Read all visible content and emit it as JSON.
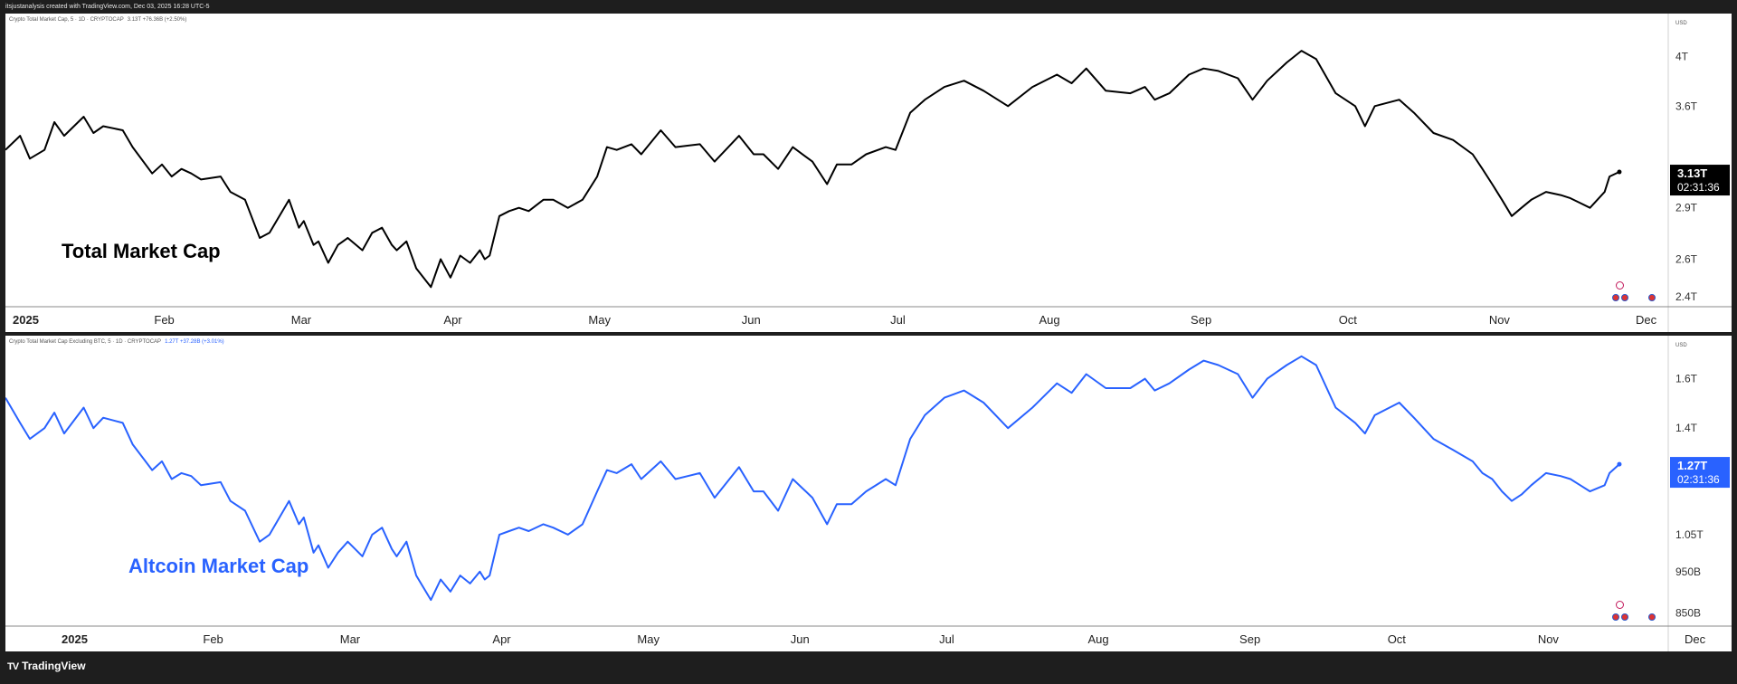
{
  "header": {
    "text": "itsjustanalysis created with TradingView.com, Dec 03, 2025 16:28 UTC-5"
  },
  "footer": {
    "logo_text": "TradingView",
    "logo_mark": "TV"
  },
  "colors": {
    "line1": "#000000",
    "line2": "#2962ff",
    "badge2": "#2962ff"
  },
  "chart_data": [
    {
      "type": "line",
      "legend": "Crypto Total Market Cap, 5 · 1D · CRYPTOCAP",
      "legend_value": "3.13T  +76.36B (+2.50%)",
      "annotation": "Total Market Cap",
      "currency": "USD",
      "x_labels": [
        "2025",
        "Feb",
        "Mar",
        "Apr",
        "May",
        "Jun",
        "Jul",
        "Aug",
        "Sep",
        "Oct",
        "Nov",
        "Dec"
      ],
      "x_label_pos": [
        0,
        31,
        59,
        90,
        120,
        151,
        181,
        212,
        243,
        273,
        304,
        334
      ],
      "y_ticks": [
        {
          "v": 2.4,
          "label": "2.4T"
        },
        {
          "v": 2.6,
          "label": "2.6T"
        },
        {
          "v": 2.9,
          "label": "2.9T"
        },
        {
          "v": 3.6,
          "label": "3.6T"
        },
        {
          "v": 4.0,
          "label": "4T"
        }
      ],
      "y_range": [
        2.35,
        4.35
      ],
      "log_scale": true,
      "last_value": 3.13,
      "badge_value": "3.13T",
      "badge_time": "02:31:36",
      "x": [
        0,
        3,
        5,
        8,
        10,
        12,
        16,
        18,
        20,
        24,
        26,
        30,
        32,
        34,
        36,
        38,
        40,
        44,
        46,
        49,
        52,
        54,
        58,
        60,
        61,
        63,
        64,
        66,
        68,
        70,
        73,
        75,
        77,
        79,
        80,
        82,
        84,
        87,
        89,
        91,
        93,
        95,
        97,
        98,
        99,
        101,
        103,
        105,
        107,
        110,
        112,
        115,
        118,
        121,
        123,
        125,
        128,
        130,
        134,
        137,
        142,
        145,
        150,
        153,
        155,
        158,
        161,
        165,
        168,
        170,
        173,
        176,
        180,
        182,
        185,
        188,
        192,
        196,
        200,
        205,
        210,
        215,
        218,
        221,
        225,
        230,
        233,
        235,
        238,
        242,
        245,
        248,
        252,
        255,
        258,
        262,
        265,
        268,
        272,
        276,
        278,
        280,
        285,
        288,
        292,
        296,
        300,
        302,
        304,
        306,
        308,
        310,
        312,
        315,
        318,
        320,
        322,
        324,
        327,
        328,
        330
      ],
      "y": [
        3.28,
        3.38,
        3.22,
        3.28,
        3.48,
        3.38,
        3.52,
        3.4,
        3.45,
        3.42,
        3.3,
        3.12,
        3.18,
        3.1,
        3.15,
        3.12,
        3.08,
        3.1,
        3.0,
        2.95,
        2.72,
        2.75,
        2.95,
        2.78,
        2.82,
        2.68,
        2.7,
        2.58,
        2.68,
        2.72,
        2.65,
        2.75,
        2.78,
        2.68,
        2.65,
        2.7,
        2.55,
        2.45,
        2.6,
        2.5,
        2.62,
        2.58,
        2.65,
        2.6,
        2.62,
        2.85,
        2.88,
        2.9,
        2.88,
        2.95,
        2.95,
        2.9,
        2.95,
        3.1,
        3.3,
        3.28,
        3.32,
        3.25,
        3.42,
        3.3,
        3.32,
        3.2,
        3.38,
        3.25,
        3.25,
        3.15,
        3.3,
        3.2,
        3.05,
        3.18,
        3.18,
        3.25,
        3.3,
        3.28,
        3.55,
        3.65,
        3.75,
        3.8,
        3.72,
        3.6,
        3.75,
        3.85,
        3.78,
        3.9,
        3.72,
        3.7,
        3.75,
        3.65,
        3.7,
        3.85,
        3.9,
        3.88,
        3.82,
        3.65,
        3.8,
        3.95,
        4.05,
        3.98,
        3.7,
        3.6,
        3.45,
        3.6,
        3.65,
        3.55,
        3.4,
        3.35,
        3.25,
        3.15,
        3.05,
        2.95,
        2.85,
        2.9,
        2.95,
        3.0,
        2.98,
        2.96,
        2.93,
        2.9,
        3.0,
        3.1,
        3.13
      ]
    },
    {
      "type": "line",
      "legend": "Crypto Total Market Cap Excluding BTC, 5 · 1D · CRYPTOCAP",
      "legend_value": "1.27T  +37.28B (+3.01%)",
      "annotation": "Altcoin Market Cap",
      "currency": "USD",
      "x_labels": [
        "2025",
        "Feb",
        "Mar",
        "Apr",
        "May",
        "Jun",
        "Jul",
        "Aug",
        "Sep",
        "Oct",
        "Nov",
        "Dec"
      ],
      "x_label_pos": [
        0,
        31,
        59,
        90,
        120,
        151,
        181,
        212,
        243,
        273,
        304,
        334
      ],
      "y_ticks": [
        {
          "v": 0.85,
          "label": "850B"
        },
        {
          "v": 0.95,
          "label": "950B"
        },
        {
          "v": 1.05,
          "label": "1.05T"
        },
        {
          "v": 1.4,
          "label": "1.4T"
        },
        {
          "v": 1.6,
          "label": "1.6T"
        }
      ],
      "y_range": [
        0.82,
        1.78
      ],
      "log_scale": true,
      "last_value": 1.27,
      "badge_value": "1.27T",
      "badge_time": "02:31:36",
      "x": [
        0,
        3,
        5,
        8,
        10,
        12,
        16,
        18,
        20,
        24,
        26,
        30,
        32,
        34,
        36,
        38,
        40,
        44,
        46,
        49,
        52,
        54,
        58,
        60,
        61,
        63,
        64,
        66,
        68,
        70,
        73,
        75,
        77,
        79,
        80,
        82,
        84,
        87,
        89,
        91,
        93,
        95,
        97,
        98,
        99,
        101,
        103,
        105,
        107,
        110,
        112,
        115,
        118,
        121,
        123,
        125,
        128,
        130,
        134,
        137,
        142,
        145,
        150,
        153,
        155,
        158,
        161,
        165,
        168,
        170,
        173,
        176,
        180,
        182,
        185,
        188,
        192,
        196,
        200,
        205,
        210,
        215,
        218,
        221,
        225,
        230,
        233,
        235,
        238,
        242,
        245,
        248,
        252,
        255,
        258,
        262,
        265,
        268,
        272,
        276,
        278,
        280,
        285,
        288,
        292,
        296,
        300,
        302,
        304,
        306,
        308,
        310,
        312,
        315,
        318,
        320,
        322,
        324,
        327,
        328,
        330
      ],
      "y": [
        1.52,
        1.42,
        1.36,
        1.4,
        1.46,
        1.38,
        1.48,
        1.4,
        1.44,
        1.42,
        1.34,
        1.25,
        1.28,
        1.22,
        1.24,
        1.23,
        1.2,
        1.21,
        1.15,
        1.12,
        1.03,
        1.05,
        1.15,
        1.08,
        1.1,
        1.0,
        1.02,
        0.96,
        1.0,
        1.03,
        0.99,
        1.05,
        1.07,
        1.01,
        0.99,
        1.03,
        0.94,
        0.88,
        0.93,
        0.9,
        0.94,
        0.92,
        0.95,
        0.93,
        0.94,
        1.05,
        1.06,
        1.07,
        1.06,
        1.08,
        1.07,
        1.05,
        1.08,
        1.18,
        1.25,
        1.24,
        1.27,
        1.22,
        1.28,
        1.22,
        1.24,
        1.16,
        1.26,
        1.18,
        1.18,
        1.12,
        1.22,
        1.16,
        1.08,
        1.14,
        1.14,
        1.18,
        1.22,
        1.2,
        1.36,
        1.45,
        1.52,
        1.55,
        1.5,
        1.4,
        1.48,
        1.58,
        1.54,
        1.62,
        1.56,
        1.56,
        1.6,
        1.55,
        1.58,
        1.64,
        1.68,
        1.66,
        1.62,
        1.52,
        1.6,
        1.66,
        1.7,
        1.66,
        1.48,
        1.42,
        1.38,
        1.45,
        1.5,
        1.44,
        1.36,
        1.32,
        1.28,
        1.24,
        1.22,
        1.18,
        1.15,
        1.17,
        1.2,
        1.24,
        1.23,
        1.22,
        1.2,
        1.18,
        1.2,
        1.24,
        1.27
      ]
    }
  ]
}
